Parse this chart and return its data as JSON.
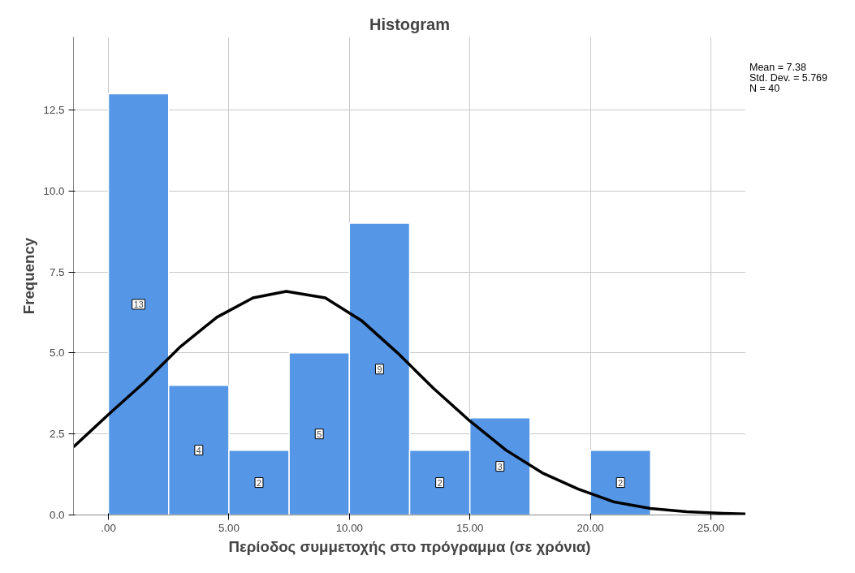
{
  "chart_data": {
    "type": "histogram",
    "title": "Histogram",
    "xlabel": "Περίοδος συμμετοχής στο πρόγραμμα (σε χρόνια)",
    "ylabel": "Frequency",
    "bins": [
      0,
      2.5,
      5,
      7.5,
      10,
      12.5,
      15,
      17.5,
      20,
      22.5
    ],
    "values": [
      13,
      4,
      2,
      5,
      9,
      2,
      3,
      0,
      2
    ],
    "value_labels": [
      "13",
      "4",
      "2",
      "5",
      "9",
      "2",
      "3",
      null,
      "2"
    ],
    "color": "#5596e6",
    "series": [
      {
        "type": "line",
        "color": "#000000",
        "x": [
          -1.45,
          0,
          1.5,
          3,
          4.5,
          6,
          7.38,
          9,
          10.5,
          12,
          13.5,
          15,
          16.5,
          18,
          19.5,
          21,
          22.5,
          24,
          25.5,
          26.45
        ],
        "values": [
          2.1,
          3.1,
          4.1,
          5.2,
          6.1,
          6.7,
          6.9,
          6.7,
          6.0,
          5.0,
          3.9,
          2.9,
          2.0,
          1.3,
          0.8,
          0.4,
          0.2,
          0.1,
          0.05,
          0.03
        ]
      }
    ],
    "xlim": [
      -1.45,
      26.45
    ],
    "ylim": [
      0,
      14.75
    ],
    "xticks": [
      {
        "value": 0,
        "label": ".00"
      },
      {
        "value": 5,
        "label": "5.00"
      },
      {
        "value": 10,
        "label": "10.00"
      },
      {
        "value": 15,
        "label": "15.00"
      },
      {
        "value": 20,
        "label": "20.00"
      },
      {
        "value": 25,
        "label": "25.00"
      }
    ],
    "yticks": [
      {
        "value": 0,
        "label": "0.0"
      },
      {
        "value": 2.5,
        "label": "2.5"
      },
      {
        "value": 5,
        "label": "5.0"
      },
      {
        "value": 7.5,
        "label": "7.5"
      },
      {
        "value": 10,
        "label": "10.0"
      },
      {
        "value": 12.5,
        "label": "12.5"
      }
    ],
    "grid": true,
    "line_style": "solid",
    "marker": "none",
    "annotations": [
      "Mean = 7.38",
      "Std. Dev. = 5.769",
      "N = 40"
    ]
  }
}
